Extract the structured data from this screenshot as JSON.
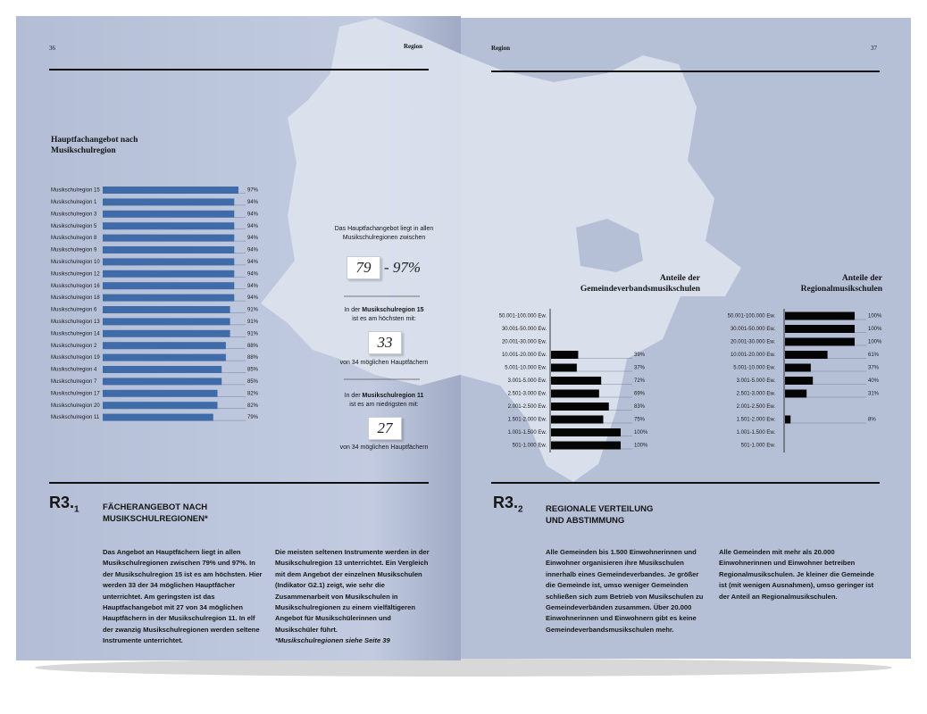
{
  "chart_data": [
    {
      "type": "hbar",
      "title": "Hauptfachangebot nach Musikschulregion",
      "categories": [
        "Musikschulregion 15",
        "Musikschulregion 1",
        "Musikschulregion 3",
        "Musikschulregion 5",
        "Musikschulregion 8",
        "Musikschulregion 9",
        "Musikschulregion 10",
        "Musikschulregion 12",
        "Musikschulregion 16",
        "Musikschulregion 18",
        "Musikschulregion 6",
        "Musikschulregion 13",
        "Musikschulregion 14",
        "Musikschulregion 2",
        "Musikschulregion 19",
        "Musikschulregion 4",
        "Musikschulregion 7",
        "Musikschulregion 17",
        "Musikschulregion 20",
        "Musikschulregion 11"
      ],
      "values": [
        97,
        94,
        94,
        94,
        94,
        94,
        94,
        94,
        94,
        94,
        91,
        91,
        91,
        88,
        88,
        85,
        85,
        82,
        82,
        79
      ],
      "value_labels": [
        "97%",
        "94%",
        "94%",
        "94%",
        "94%",
        "94%",
        "94%",
        "94%",
        "94%",
        "94%",
        "91%",
        "91%",
        "91%",
        "88%",
        "88%",
        "85%",
        "85%",
        "82%",
        "82%",
        "79%"
      ],
      "color": "#3f6ca8"
    },
    {
      "type": "hbar",
      "title": "Anteile der Gemeindeverbandsmusikschulen",
      "categories": [
        "50.001-100.000 Ew.",
        "30.001-50.000 Ew.",
        "20.001-30.000 Ew.",
        "10.001-20.000 Ew.",
        "5.001-10.000 Ew.",
        "3.001-5.000 Ew.",
        "2.501-3.000 Ew.",
        "2.001-2.500 Ew.",
        "1.501-2.000 Ew.",
        "1.001-1.500 Ew.",
        "501-1.000 Ew."
      ],
      "values": [
        null,
        null,
        null,
        39,
        37,
        72,
        69,
        83,
        75,
        100,
        100
      ],
      "value_labels": [
        null,
        null,
        null,
        "39%",
        "37%",
        "72%",
        "69%",
        "83%",
        "75%",
        "100%",
        "100%"
      ],
      "color": "#050505"
    },
    {
      "type": "hbar",
      "title": "Anteile der Regionalmusikschulen",
      "categories": [
        "50.001-100.000 Ew.",
        "30.001-50.000 Ew.",
        "20.001-30.000 Ew.",
        "10.001-20.000 Ew.",
        "5.001-10.000 Ew.",
        "3.001-5.000 Ew.",
        "2.501-3.000 Ew.",
        "2.001-2.500 Ew.",
        "1.501-2.000 Ew.",
        "1.001-1.500 Ew.",
        "501-1.000 Ew."
      ],
      "values": [
        100,
        100,
        100,
        61,
        37,
        40,
        31,
        null,
        8,
        null,
        null
      ],
      "value_labels": [
        "100%",
        "100%",
        "100%",
        "61%",
        "37%",
        "40%",
        "31%",
        null,
        "8%",
        null,
        null
      ],
      "color": "#050505"
    }
  ],
  "left_page": {
    "number": "36",
    "header": "Region",
    "callout_range": {
      "text": "Das Hauptfachangebot liegt in allen Musikschulregionen zwischen",
      "low": "79",
      "high": "- 97%"
    },
    "callout_high": {
      "before": "In der",
      "region": "Musikschulregion 15",
      "after": "ist es am höchsten mit:",
      "number": "33",
      "note": "von 34 möglichen Hauptfächern"
    },
    "callout_low": {
      "before": "In der",
      "region": "Musikschulregion 11",
      "after": "ist es am niedrigsten mit:",
      "number": "27",
      "note": "von 34 möglichen Hauptfächern"
    },
    "section": {
      "code": "R3.",
      "sub": "1",
      "heading": "FÄCHERANGEBOT NACH MUSIKSCHULREGIONEN*",
      "columns": [
        "Das Angebot an Hauptfächern liegt in allen Musikschulregionen zwischen 79% und 97%. In der Musikschulregion 15 ist es am höchsten. Hier werden 33 der 34 möglichen Hauptfächer unterrichtet. Am geringsten ist das Hauptfachangebot mit 27 von 34 möglichen Hauptfächern in der Musikschulregion 11. In elf der zwanzig Musikschulregionen werden seltene Instrumente unterrichtet.",
        "Die meisten seltenen Instrumente werden in der Musikschulregion 13 unterrichtet. Ein Vergleich mit dem Angebot der einzelnen Musikschulen (Indikator G2.1) zeigt, wie sehr die Zusammenarbeit von Musikschulen in Musikschulregionen zu einem vielfältigeren Angebot für Musikschülerinnen und Musikschüler führt."
      ],
      "footnote": "*Musikschulregionen siehe Seite 39"
    }
  },
  "right_page": {
    "number": "37",
    "header": "Region",
    "section": {
      "code": "R3.",
      "sub": "2",
      "heading": "REGIONALE VERTEILUNG UND ABSTIMMUNG",
      "columns": [
        "Alle Gemeinden bis 1.500 Einwohnerinnen und Einwohner organisieren ihre Musikschulen innerhalb eines Gemeindeverbandes. Je größer die Gemeinde ist, umso weniger Gemeinden schließen sich zum Betrieb von Musikschulen zu Gemeindeverbänden zusammen. Über 20.000 Einwohnerinnen und Einwohnern gibt es keine Gemeindeverbandsmusikschulen mehr.",
        "Alle Gemeinden mit mehr als 20.000 Einwohnerinnen und Einwohner betreiben Regionalmusikschulen. Je kleiner die Gemeinde ist (mit wenigen Ausnahmen), umso geringer ist der Anteil an Regionalmusikschulen."
      ]
    }
  }
}
